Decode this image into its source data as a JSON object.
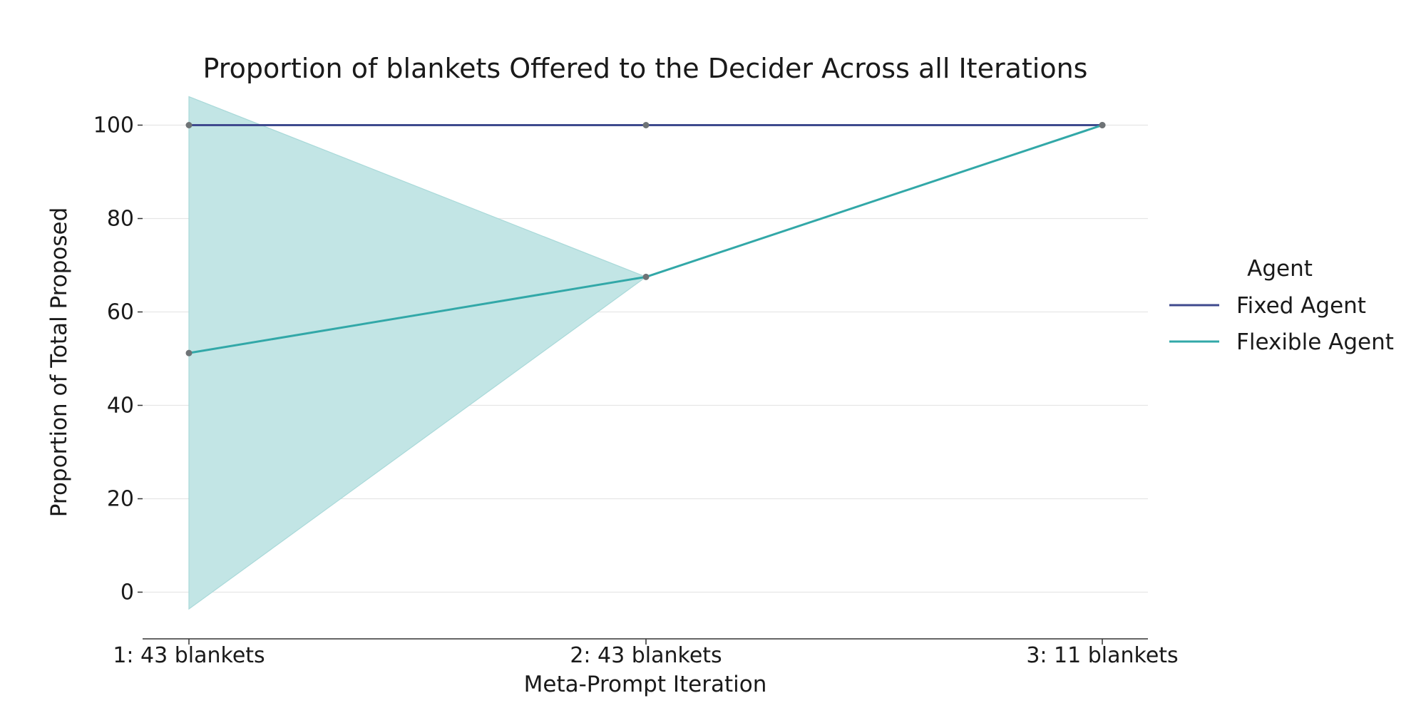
{
  "chart_data": {
    "type": "line",
    "title": "Proportion of blankets Offered to the Decider Across all Iterations",
    "xlabel": "Meta-Prompt Iteration",
    "ylabel": "Proportion of Total Proposed",
    "categories": [
      "1: 43 blankets",
      "2: 43 blankets",
      "3: 11 blankets"
    ],
    "ylim": [
      -10,
      110
    ],
    "yticks": [
      0,
      20,
      40,
      60,
      80,
      100
    ],
    "grid": "horizontal",
    "legend": {
      "title": "Agent",
      "placement": "right"
    },
    "series": [
      {
        "name": "Fixed Agent",
        "color": "#3f4a8e",
        "values": [
          100,
          100,
          100
        ]
      },
      {
        "name": "Flexible Agent",
        "color": "#32a8a8",
        "values": [
          51.2,
          67.5,
          100
        ],
        "ci_lower": [
          -3.6,
          67.5,
          100
        ],
        "ci_upper": [
          106.1,
          67.5,
          100
        ],
        "band_color": "#c2e5e5"
      }
    ],
    "marker_color": "#6e7376"
  }
}
